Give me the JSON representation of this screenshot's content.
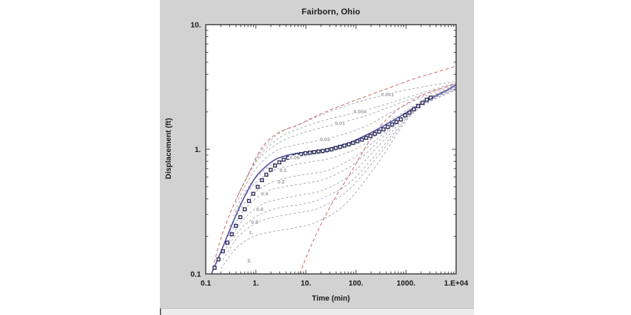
{
  "window": {
    "title": "Fairborn, Ohio",
    "colors": {
      "panel": "#d2d2d2",
      "plot_bg": "#ffffff",
      "frame": "#3a3a3a",
      "text": "#1b1b1b",
      "type_curve": "#a9a7b2",
      "type_curve_label": "#9b99a6",
      "envelope": "#c96a6a",
      "fit": "#5a55a8",
      "marker": "#20204d",
      "strip": "#ececec"
    }
  },
  "chart_data": {
    "type": "line",
    "title": "Fairborn, Ohio",
    "xlabel": "Time (min)",
    "ylabel": "Displacement (ft)",
    "xscale": "log",
    "yscale": "log",
    "xlim": [
      0.1,
      10000
    ],
    "ylim": [
      0.1,
      10
    ],
    "grid": false,
    "legend": "none",
    "x_tick_labels": [
      "0.1",
      "1.",
      "10.",
      "100.",
      "1000.",
      "1.E+04"
    ],
    "y_tick_labels": [
      "0.1",
      "1.",
      "10."
    ],
    "series": [
      {
        "name": "observed-data",
        "kind": "scatter",
        "marker": "square",
        "color": "#20204d",
        "points": [
          [
            0.15,
            0.112
          ],
          [
            0.18,
            0.131
          ],
          [
            0.22,
            0.152
          ],
          [
            0.27,
            0.178
          ],
          [
            0.33,
            0.208
          ],
          [
            0.4,
            0.243
          ],
          [
            0.49,
            0.285
          ],
          [
            0.6,
            0.33
          ],
          [
            0.73,
            0.385
          ],
          [
            0.89,
            0.44
          ],
          [
            1.09,
            0.5
          ],
          [
            1.33,
            0.565
          ],
          [
            1.62,
            0.625
          ],
          [
            1.98,
            0.685
          ],
          [
            2.42,
            0.74
          ],
          [
            2.95,
            0.785
          ],
          [
            3.6,
            0.825
          ],
          [
            4.4,
            0.855
          ],
          [
            5.4,
            0.88
          ],
          [
            6.6,
            0.9
          ],
          [
            8.0,
            0.915
          ],
          [
            9.8,
            0.93
          ],
          [
            12,
            0.94
          ],
          [
            14.6,
            0.95
          ],
          [
            17.8,
            0.96
          ],
          [
            21.7,
            0.97
          ],
          [
            26.5,
            0.985
          ],
          [
            32.4,
            1.0
          ],
          [
            39.5,
            1.025
          ],
          [
            48.2,
            1.045
          ],
          [
            58.9,
            1.07
          ],
          [
            71.9,
            1.095
          ],
          [
            87.7,
            1.125
          ],
          [
            107,
            1.16
          ],
          [
            131,
            1.195
          ],
          [
            160,
            1.235
          ],
          [
            195,
            1.28
          ],
          [
            238,
            1.33
          ],
          [
            290,
            1.385
          ],
          [
            354,
            1.445
          ],
          [
            432,
            1.51
          ],
          [
            528,
            1.58
          ],
          [
            644,
            1.655
          ],
          [
            786,
            1.735
          ],
          [
            960,
            1.87
          ],
          [
            1171,
            1.97
          ],
          [
            1430,
            2.09
          ],
          [
            1745,
            2.22
          ],
          [
            2130,
            2.36
          ],
          [
            2600,
            2.5
          ],
          [
            3100,
            2.6
          ]
        ]
      },
      {
        "name": "fitted-curve",
        "kind": "line",
        "style": "solid",
        "width": 1.8,
        "color": "#5a55a8",
        "points": [
          [
            0.13,
            0.1
          ],
          [
            0.2,
            0.15
          ],
          [
            0.35,
            0.26
          ],
          [
            0.6,
            0.42
          ],
          [
            1.0,
            0.6
          ],
          [
            1.6,
            0.73
          ],
          [
            2.5,
            0.83
          ],
          [
            4,
            0.89
          ],
          [
            7,
            0.93
          ],
          [
            12,
            0.955
          ],
          [
            22,
            0.99
          ],
          [
            40,
            1.05
          ],
          [
            75,
            1.13
          ],
          [
            130,
            1.25
          ],
          [
            230,
            1.4
          ],
          [
            400,
            1.58
          ],
          [
            700,
            1.8
          ],
          [
            1200,
            2.05
          ],
          [
            2000,
            2.32
          ],
          [
            3500,
            2.62
          ],
          [
            6000,
            2.92
          ],
          [
            10000,
            3.3
          ]
        ]
      },
      {
        "name": "theis-early-envelope",
        "kind": "line",
        "style": "dashed",
        "width": 1.1,
        "color": "#c96a6a",
        "points": [
          [
            0.13,
            0.1
          ],
          [
            0.19,
            0.18
          ],
          [
            0.3,
            0.3
          ],
          [
            0.48,
            0.46
          ],
          [
            0.7,
            0.62
          ],
          [
            1.0,
            0.85
          ],
          [
            1.5,
            1.1
          ],
          [
            2.5,
            1.32
          ],
          [
            4,
            1.45
          ],
          [
            6.6,
            1.55
          ],
          [
            12,
            1.75
          ],
          [
            25,
            2.0
          ],
          [
            60,
            2.3
          ],
          [
            176,
            2.7
          ],
          [
            500,
            3.15
          ],
          [
            1500,
            3.7
          ],
          [
            4000,
            4.15
          ],
          [
            10000,
            4.65
          ]
        ]
      },
      {
        "name": "theis-late-envelope",
        "kind": "line",
        "style": "dashed",
        "width": 1.1,
        "color": "#c96a6a",
        "points": [
          [
            7.5,
            0.1
          ],
          [
            12,
            0.16
          ],
          [
            21,
            0.26
          ],
          [
            40,
            0.42
          ],
          [
            70,
            0.6
          ],
          [
            110,
            0.82
          ],
          [
            170,
            1.1
          ],
          [
            260,
            1.42
          ],
          [
            420,
            1.75
          ],
          [
            700,
            2.1
          ],
          [
            1300,
            2.45
          ],
          [
            2800,
            2.85
          ],
          [
            6000,
            3.15
          ],
          [
            10000,
            3.4
          ]
        ]
      },
      {
        "name": "type-curve-0.001",
        "kind": "line",
        "style": "dashed",
        "width": 1.0,
        "color": "#a9a7b2",
        "label": "0.001",
        "label_at": [
          427,
          2.75
        ],
        "points": [
          [
            0.5,
            0.48
          ],
          [
            1.2,
            0.93
          ],
          [
            3,
            1.35
          ],
          [
            8,
            1.6
          ],
          [
            25,
            1.95
          ],
          [
            80,
            2.3
          ],
          [
            250,
            2.62
          ],
          [
            700,
            2.9
          ],
          [
            2500,
            3.2
          ],
          [
            10000,
            3.5
          ]
        ]
      },
      {
        "name": "type-curve-0.004",
        "kind": "line",
        "style": "dashed",
        "width": 1.0,
        "color": "#a9a7b2",
        "label": "0.004",
        "label_at": [
          120,
          2.0
        ],
        "points": [
          [
            0.45,
            0.44
          ],
          [
            1.1,
            0.85
          ],
          [
            2.8,
            1.22
          ],
          [
            7,
            1.45
          ],
          [
            20,
            1.68
          ],
          [
            60,
            1.88
          ],
          [
            120,
            2.0
          ],
          [
            400,
            2.3
          ],
          [
            1500,
            2.72
          ],
          [
            10000,
            3.42
          ]
        ]
      },
      {
        "name": "type-curve-0.01",
        "kind": "line",
        "style": "dashed",
        "width": 1.0,
        "color": "#a9a7b2",
        "label": "0.01",
        "label_at": [
          48,
          1.62
        ],
        "points": [
          [
            0.42,
            0.41
          ],
          [
            1.0,
            0.78
          ],
          [
            2.6,
            1.1
          ],
          [
            6.5,
            1.3
          ],
          [
            16,
            1.45
          ],
          [
            48,
            1.62
          ],
          [
            150,
            1.85
          ],
          [
            500,
            2.2
          ],
          [
            2000,
            2.72
          ],
          [
            10000,
            3.36
          ]
        ]
      },
      {
        "name": "type-curve-0.03",
        "kind": "line",
        "style": "dashed",
        "width": 1.0,
        "color": "#a9a7b2",
        "label": "0.03",
        "label_at": [
          24,
          1.2
        ],
        "points": [
          [
            0.4,
            0.37
          ],
          [
            0.95,
            0.68
          ],
          [
            2.4,
            0.96
          ],
          [
            6,
            1.08
          ],
          [
            15,
            1.16
          ],
          [
            40,
            1.27
          ],
          [
            150,
            1.52
          ],
          [
            600,
            2.05
          ],
          [
            2500,
            2.7
          ],
          [
            10000,
            3.3
          ]
        ]
      },
      {
        "name": "type-curve-0.06",
        "kind": "line",
        "style": "dashed",
        "width": 1.0,
        "color": "#a9a7b2",
        "label": "0.06",
        "label_at": [
          6,
          0.86
        ],
        "points": [
          [
            0.37,
            0.32
          ],
          [
            0.85,
            0.55
          ],
          [
            2.2,
            0.76
          ],
          [
            5.4,
            0.85
          ],
          [
            13,
            0.9
          ],
          [
            35,
            0.97
          ],
          [
            130,
            1.18
          ],
          [
            550,
            1.75
          ],
          [
            2500,
            2.55
          ],
          [
            10000,
            3.24
          ]
        ]
      },
      {
        "name": "type-curve-0.1",
        "kind": "line",
        "style": "dashed",
        "width": 1.0,
        "color": "#a9a7b2",
        "label": "0.1",
        "label_at": [
          3.5,
          0.68
        ],
        "points": [
          [
            0.35,
            0.29
          ],
          [
            0.8,
            0.49
          ],
          [
            2,
            0.66
          ],
          [
            5,
            0.74
          ],
          [
            12,
            0.79
          ],
          [
            32,
            0.85
          ],
          [
            120,
            1.05
          ],
          [
            500,
            1.6
          ],
          [
            2200,
            2.45
          ],
          [
            10000,
            3.2
          ]
        ]
      },
      {
        "name": "type-curve-0.2",
        "kind": "line",
        "style": "dashed",
        "width": 1.0,
        "color": "#a9a7b2",
        "label": "0.2",
        "label_at": [
          3.2,
          0.55
        ],
        "points": [
          [
            0.3,
            0.24
          ],
          [
            0.7,
            0.4
          ],
          [
            1.8,
            0.53
          ],
          [
            4.2,
            0.59
          ],
          [
            10,
            0.63
          ],
          [
            28,
            0.68
          ],
          [
            100,
            0.88
          ],
          [
            420,
            1.42
          ],
          [
            2000,
            2.35
          ],
          [
            10000,
            3.16
          ]
        ]
      },
      {
        "name": "type-curve-0.4",
        "kind": "line",
        "style": "dashed",
        "width": 1.0,
        "color": "#a9a7b2",
        "label": "0.4",
        "label_at": [
          1.5,
          0.44
        ],
        "points": [
          [
            0.28,
            0.2
          ],
          [
            0.6,
            0.33
          ],
          [
            1.5,
            0.45
          ],
          [
            3.6,
            0.5
          ],
          [
            9,
            0.53
          ],
          [
            25,
            0.58
          ],
          [
            90,
            0.76
          ],
          [
            380,
            1.3
          ],
          [
            1800,
            2.3
          ],
          [
            10000,
            3.14
          ]
        ]
      },
      {
        "name": "type-curve-0.6",
        "kind": "line",
        "style": "dashed",
        "width": 1.0,
        "color": "#a9a7b2",
        "label": "0.6",
        "label_at": [
          1.2,
          0.33
        ],
        "points": [
          [
            0.25,
            0.17
          ],
          [
            0.55,
            0.27
          ],
          [
            1.3,
            0.36
          ],
          [
            3.2,
            0.4
          ],
          [
            8,
            0.43
          ],
          [
            22,
            0.47
          ],
          [
            80,
            0.63
          ],
          [
            340,
            1.15
          ],
          [
            1700,
            2.2
          ],
          [
            10000,
            3.1
          ]
        ]
      },
      {
        "name": "type-curve-0.8",
        "kind": "line",
        "style": "dashed",
        "width": 1.0,
        "color": "#a9a7b2",
        "label": "0.8",
        "label_at": [
          0.95,
          0.26
        ],
        "points": [
          [
            0.23,
            0.15
          ],
          [
            0.5,
            0.23
          ],
          [
            1.2,
            0.3
          ],
          [
            3,
            0.34
          ],
          [
            7.5,
            0.36
          ],
          [
            20,
            0.4
          ],
          [
            75,
            0.54
          ],
          [
            320,
            1.02
          ],
          [
            1600,
            2.12
          ],
          [
            10000,
            3.07
          ]
        ]
      },
      {
        "name": "type-curve-1",
        "kind": "line",
        "style": "dashed",
        "width": 1.0,
        "color": "#a9a7b2",
        "label": "1.",
        "label_at": [
          0.8,
          0.215
        ],
        "points": [
          [
            0.22,
            0.13
          ],
          [
            0.45,
            0.2
          ],
          [
            1.1,
            0.26
          ],
          [
            2.8,
            0.29
          ],
          [
            7,
            0.31
          ],
          [
            19,
            0.34
          ],
          [
            70,
            0.47
          ],
          [
            300,
            0.92
          ],
          [
            1500,
            2.05
          ],
          [
            10000,
            3.04
          ]
        ]
      },
      {
        "name": "type-curve-2",
        "kind": "line",
        "style": "dashed",
        "width": 1.0,
        "color": "#a9a7b2",
        "label": "2.",
        "label_at": [
          0.75,
          0.128
        ],
        "points": [
          [
            0.2,
            0.11
          ],
          [
            0.4,
            0.16
          ],
          [
            0.9,
            0.2
          ],
          [
            2.4,
            0.22
          ],
          [
            6,
            0.235
          ],
          [
            16,
            0.26
          ],
          [
            60,
            0.36
          ],
          [
            260,
            0.75
          ],
          [
            1400,
            1.95
          ],
          [
            10000,
            3.0
          ]
        ]
      }
    ]
  }
}
